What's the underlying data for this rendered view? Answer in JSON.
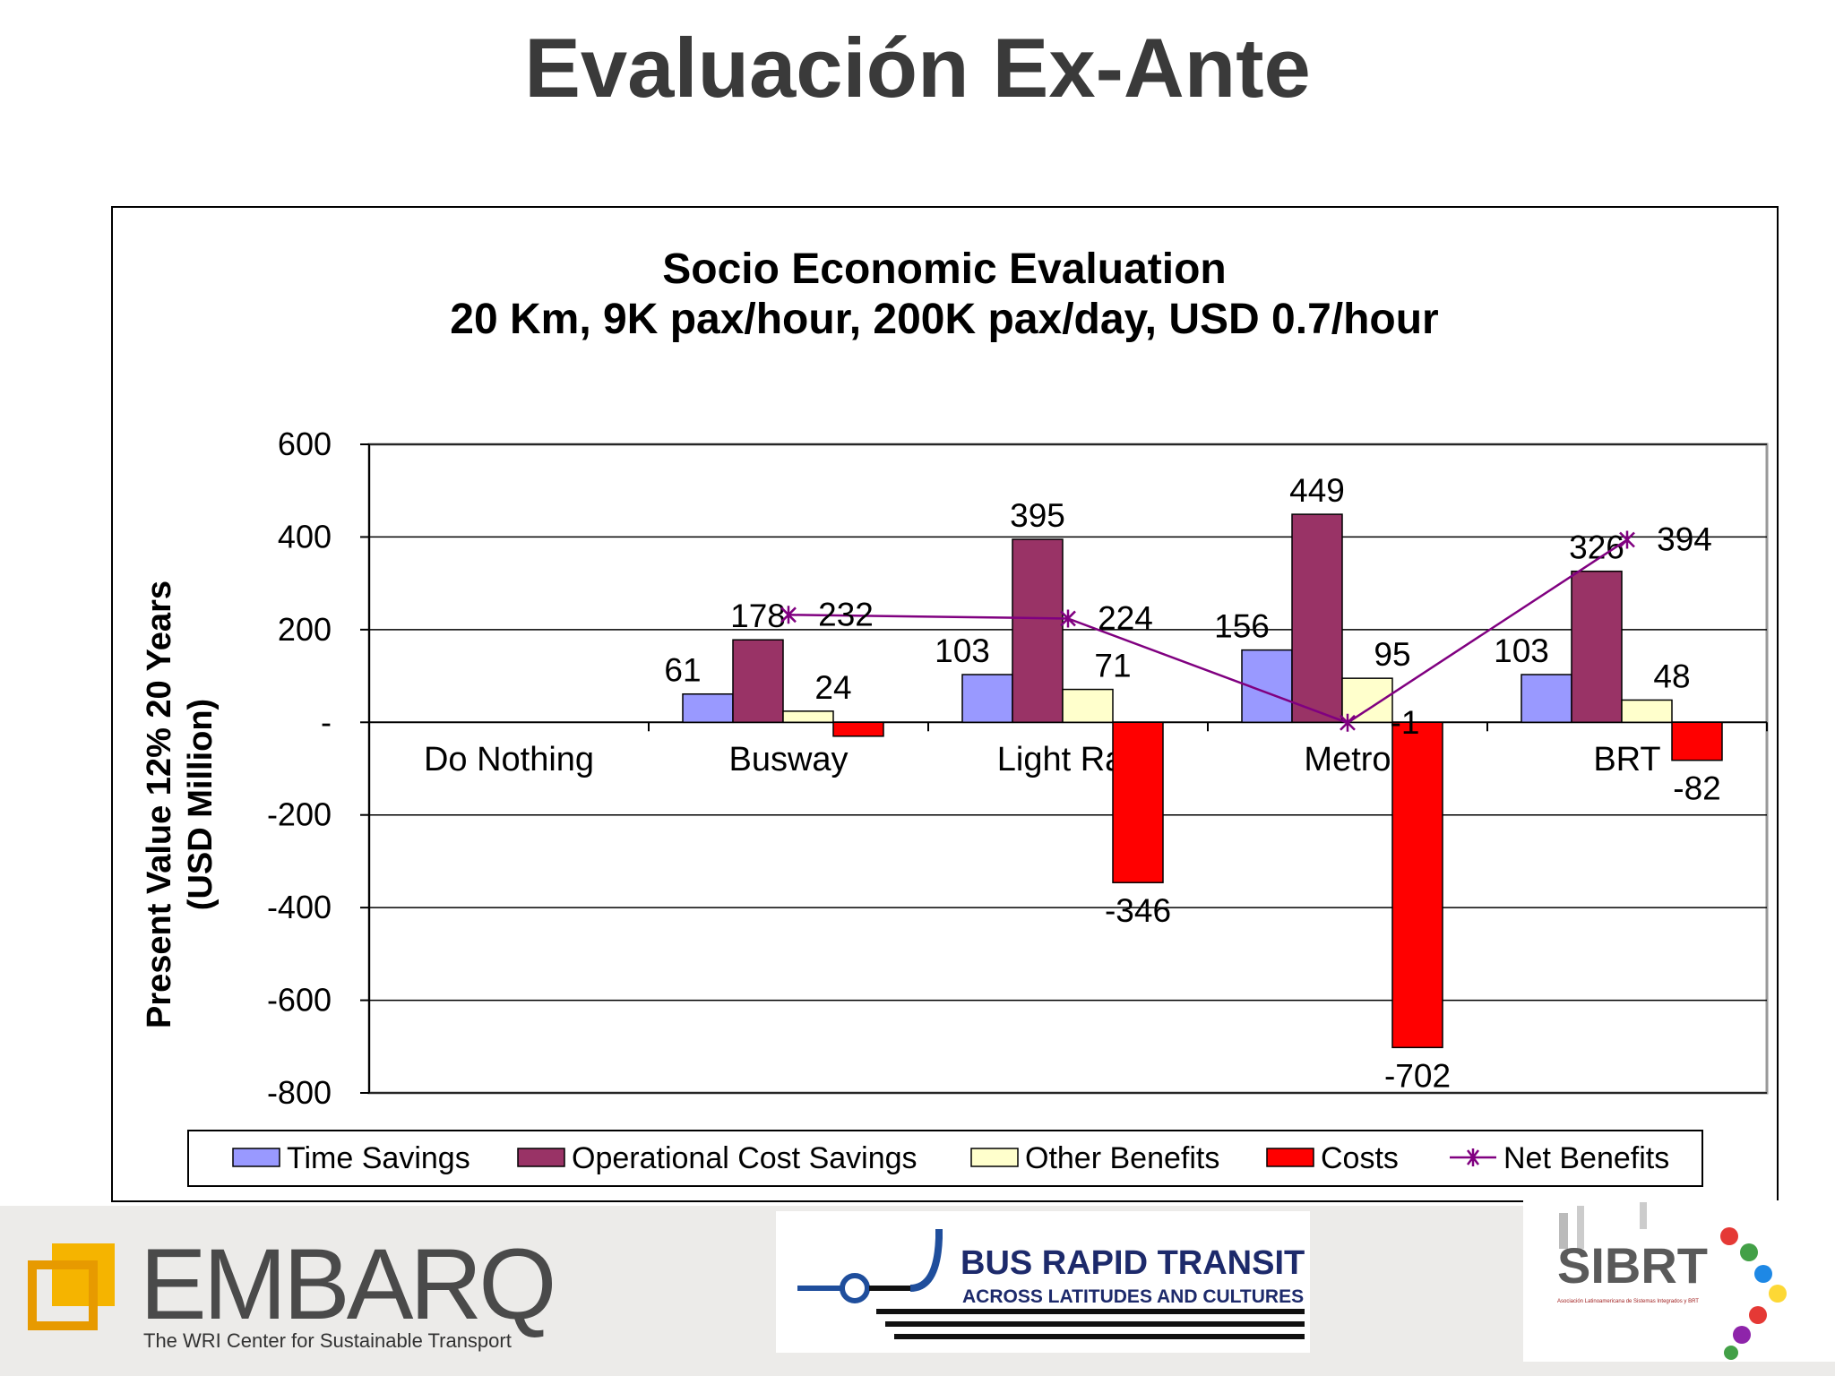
{
  "slide": {
    "title": "Evaluación Ex-Ante"
  },
  "chart_data": {
    "type": "bar",
    "title": [
      "Socio Economic Evaluation",
      "20 Km, 9K pax/hour, 200K pax/day, USD 0.7/hour"
    ],
    "xlabel": "",
    "ylabel": [
      "Present Value 12% 20 Years",
      "(USD Million)"
    ],
    "ylim": [
      -800,
      600
    ],
    "yticks": [
      600,
      400,
      200,
      0,
      -200,
      -400,
      -600,
      -800
    ],
    "ytick_labels": [
      "600",
      "400",
      "200",
      "-",
      "-200",
      "-400",
      "-600",
      "-800"
    ],
    "grid": true,
    "legend_position": "bottom",
    "categories": [
      "Do Nothing",
      "Busway",
      "Light Rail",
      "Metro",
      "BRT"
    ],
    "series": [
      {
        "name": "Time Savings",
        "kind": "bar",
        "color": "#9999ff",
        "values": [
          null,
          61,
          103,
          156,
          103
        ],
        "labels": [
          "",
          "61",
          "103",
          "156",
          "103"
        ]
      },
      {
        "name": "Operational  Cost Savings",
        "kind": "bar",
        "color": "#993366",
        "values": [
          null,
          178,
          395,
          449,
          326
        ],
        "labels": [
          "",
          "178",
          "395",
          "449",
          "326"
        ]
      },
      {
        "name": "Other Benefits",
        "kind": "bar",
        "color": "#ffffcc",
        "values": [
          null,
          24,
          71,
          95,
          48
        ],
        "labels": [
          "",
          "24",
          "71",
          "95",
          "48"
        ]
      },
      {
        "name": "Costs",
        "kind": "bar",
        "color": "#ff0000",
        "values": [
          null,
          -30,
          -346,
          -702,
          -82
        ],
        "labels": [
          "",
          "",
          "-346",
          "-702",
          "-82"
        ]
      },
      {
        "name": "Net Benefits",
        "kind": "line",
        "color": "#800080",
        "values": [
          null,
          232,
          224,
          -1,
          394
        ],
        "labels": [
          "",
          "232",
          "224",
          "-1",
          "394"
        ]
      }
    ]
  },
  "logos": {
    "embarq": {
      "name": "EMBARQ",
      "tagline": "The WRI Center for Sustainable Transport"
    },
    "brt": {
      "line1": "BUS RAPID TRANSIT",
      "line2": "ACROSS LATITUDES AND CULTURES"
    },
    "sibrt": {
      "name": "SIBRT",
      "tagline": "Asociación Latinoamericana de Sistemas Integrados y BRT"
    }
  }
}
